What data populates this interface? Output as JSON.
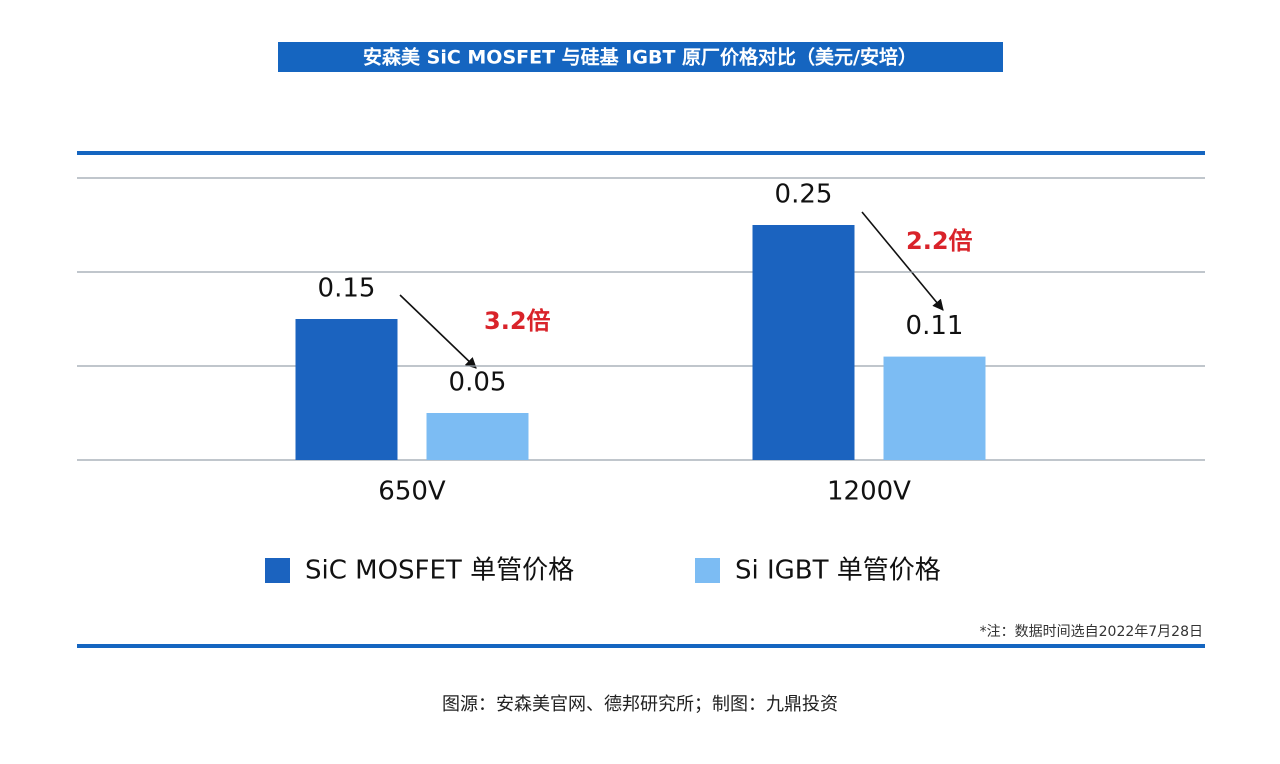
{
  "chart_data": {
    "type": "bar",
    "title": "安森美 SiC MOSFET 与硅基 IGBT 原厂价格对比（美元/安培）",
    "categories": [
      "650V",
      "1200V"
    ],
    "series": [
      {
        "name": "SiC MOSFET 单管价格",
        "color": "#1b63bf",
        "values": [
          0.15,
          0.25
        ]
      },
      {
        "name": "Si IGBT 单管价格",
        "color": "#7cbcf3",
        "values": [
          0.05,
          0.11
        ]
      }
    ],
    "annotations": [
      "3.2倍",
      "2.2倍"
    ],
    "note": "*注：数据时间选自2022年7月28日",
    "source": "图源：安森美官网、德邦研究所；制图：九鼎投资",
    "ylim": [
      0,
      0.3
    ],
    "yticks": [
      0,
      0.1,
      0.2,
      0.3
    ],
    "grid": true
  }
}
